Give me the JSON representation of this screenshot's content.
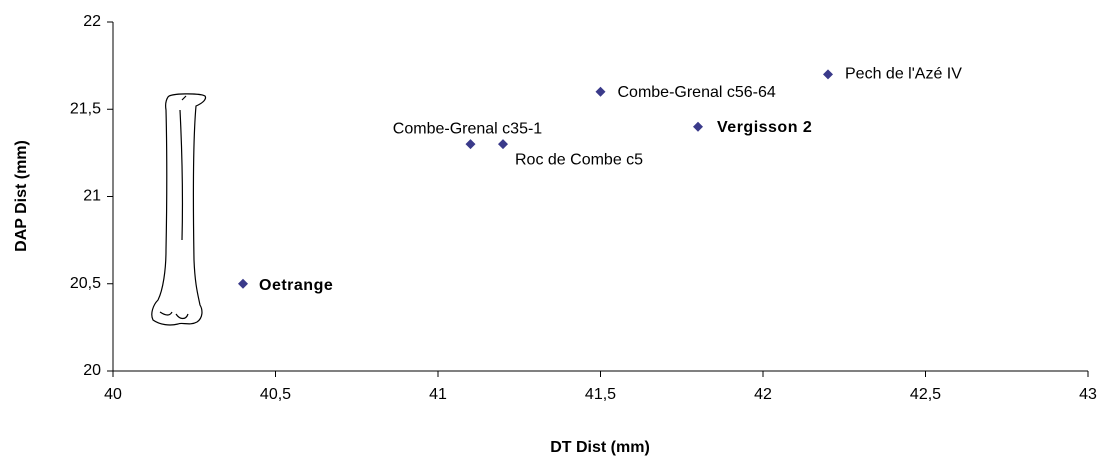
{
  "chart_data": {
    "type": "scatter",
    "x_label": "DT Dist (mm)",
    "y_label": "DAP Dist (mm)",
    "labels": [
      "Oetrange",
      "Combe-Grenal c35-1",
      "Roc de Combe c5",
      "Combe-Grenal c56-64",
      "Vergisson 2",
      "Pech de l'Azé IV"
    ],
    "label_bold": [
      true,
      false,
      false,
      false,
      true,
      false
    ],
    "x": [
      40.4,
      41.1,
      41.2,
      41.5,
      41.8,
      42.2
    ],
    "y": [
      20.5,
      21.3,
      21.3,
      21.6,
      21.4,
      21.7
    ],
    "color": "#3a3a8a",
    "xlim": [
      40,
      43
    ],
    "xticks": [
      40,
      {
        "value": 40.5,
        "label": "40,5"
      },
      41,
      {
        "value": 41.5,
        "label": "41,5"
      },
      42,
      {
        "value": 42.5,
        "label": "42,5"
      },
      43
    ],
    "ylim": [
      20,
      22
    ],
    "yticks": [
      20,
      {
        "value": 20.5,
        "label": "20,5"
      },
      21,
      {
        "value": 21.5,
        "label": "21,5"
      },
      22
    ],
    "grid": false
  }
}
